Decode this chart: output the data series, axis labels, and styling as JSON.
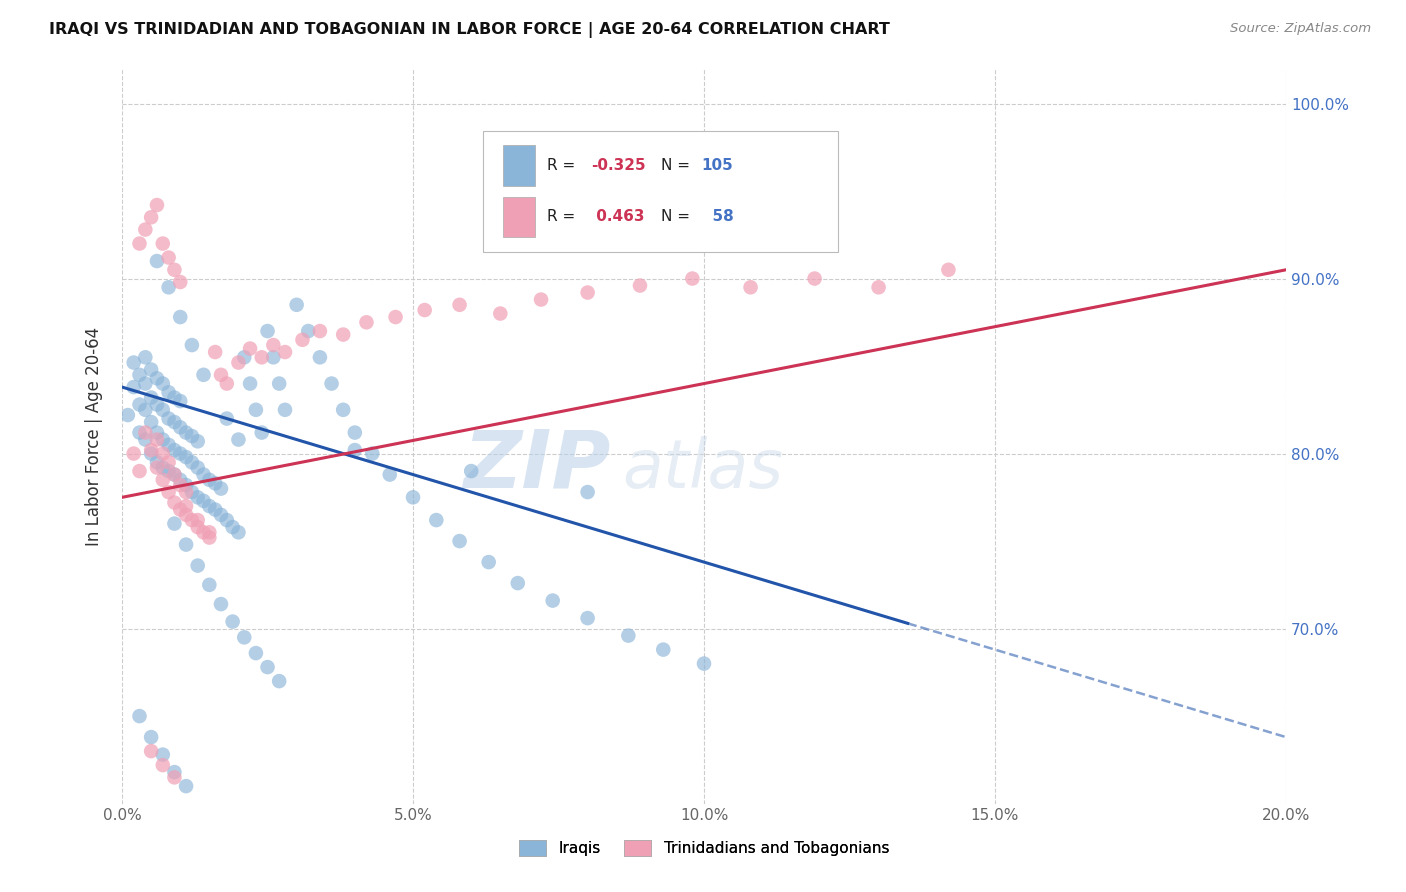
{
  "title": "IRAQI VS TRINIDADIAN AND TOBAGONIAN IN LABOR FORCE | AGE 20-64 CORRELATION CHART",
  "source": "Source: ZipAtlas.com",
  "ylabel": "In Labor Force | Age 20-64",
  "xlim": [
    0.0,
    0.2
  ],
  "ylim": [
    0.6,
    1.02
  ],
  "xticks": [
    0.0,
    0.05,
    0.1,
    0.15,
    0.2
  ],
  "xtick_labels": [
    "0.0%",
    "5.0%",
    "10.0%",
    "15.0%",
    "20.0%"
  ],
  "yticks": [
    0.7,
    0.8,
    0.9,
    1.0
  ],
  "ytick_labels": [
    "70.0%",
    "80.0%",
    "90.0%",
    "100.0%"
  ],
  "background_color": "#ffffff",
  "grid_color": "#cccccc",
  "blue_color": "#8ab4d8",
  "pink_color": "#f0a0b5",
  "blue_line_color": "#2255aa",
  "pink_line_color": "#cc3355",
  "legend_R_blue": "-0.325",
  "legend_N_blue": "105",
  "legend_R_pink": "0.463",
  "legend_N_pink": "58",
  "legend_label_blue": "Iraqis",
  "legend_label_pink": "Trinidadians and Tobagonians",
  "watermark": "ZIPatlas",
  "blue_line_x0": 0.0,
  "blue_line_y0": 0.838,
  "blue_line_x1": 0.2,
  "blue_line_y1": 0.638,
  "blue_line_solid_end": 0.135,
  "pink_line_x0": 0.0,
  "pink_line_y0": 0.775,
  "pink_line_x1": 0.2,
  "pink_line_y1": 0.905,
  "blue_dots_x": [
    0.001,
    0.002,
    0.002,
    0.003,
    0.003,
    0.003,
    0.004,
    0.004,
    0.004,
    0.004,
    0.005,
    0.005,
    0.005,
    0.005,
    0.006,
    0.006,
    0.006,
    0.006,
    0.007,
    0.007,
    0.007,
    0.007,
    0.008,
    0.008,
    0.008,
    0.008,
    0.009,
    0.009,
    0.009,
    0.009,
    0.01,
    0.01,
    0.01,
    0.01,
    0.011,
    0.011,
    0.011,
    0.012,
    0.012,
    0.012,
    0.013,
    0.013,
    0.013,
    0.014,
    0.014,
    0.015,
    0.015,
    0.016,
    0.016,
    0.017,
    0.017,
    0.018,
    0.019,
    0.02,
    0.021,
    0.022,
    0.023,
    0.024,
    0.025,
    0.026,
    0.027,
    0.028,
    0.03,
    0.032,
    0.034,
    0.036,
    0.038,
    0.04,
    0.043,
    0.046,
    0.05,
    0.054,
    0.058,
    0.063,
    0.068,
    0.074,
    0.08,
    0.087,
    0.093,
    0.1,
    0.009,
    0.011,
    0.013,
    0.015,
    0.017,
    0.019,
    0.021,
    0.023,
    0.025,
    0.027,
    0.006,
    0.008,
    0.01,
    0.012,
    0.014,
    0.018,
    0.02,
    0.04,
    0.06,
    0.08,
    0.003,
    0.005,
    0.007,
    0.009,
    0.011
  ],
  "blue_dots_y": [
    0.822,
    0.838,
    0.852,
    0.812,
    0.828,
    0.845,
    0.808,
    0.825,
    0.84,
    0.855,
    0.8,
    0.818,
    0.832,
    0.848,
    0.795,
    0.812,
    0.828,
    0.843,
    0.792,
    0.808,
    0.825,
    0.84,
    0.79,
    0.805,
    0.82,
    0.835,
    0.788,
    0.802,
    0.818,
    0.832,
    0.785,
    0.8,
    0.815,
    0.83,
    0.782,
    0.798,
    0.812,
    0.778,
    0.795,
    0.81,
    0.775,
    0.792,
    0.807,
    0.773,
    0.788,
    0.77,
    0.785,
    0.768,
    0.783,
    0.765,
    0.78,
    0.762,
    0.758,
    0.755,
    0.855,
    0.84,
    0.825,
    0.812,
    0.87,
    0.855,
    0.84,
    0.825,
    0.885,
    0.87,
    0.855,
    0.84,
    0.825,
    0.812,
    0.8,
    0.788,
    0.775,
    0.762,
    0.75,
    0.738,
    0.726,
    0.716,
    0.706,
    0.696,
    0.688,
    0.68,
    0.76,
    0.748,
    0.736,
    0.725,
    0.714,
    0.704,
    0.695,
    0.686,
    0.678,
    0.67,
    0.91,
    0.895,
    0.878,
    0.862,
    0.845,
    0.82,
    0.808,
    0.802,
    0.79,
    0.778,
    0.65,
    0.638,
    0.628,
    0.618,
    0.61
  ],
  "pink_dots_x": [
    0.002,
    0.003,
    0.004,
    0.005,
    0.006,
    0.006,
    0.007,
    0.007,
    0.008,
    0.008,
    0.009,
    0.009,
    0.01,
    0.01,
    0.011,
    0.011,
    0.012,
    0.013,
    0.014,
    0.015,
    0.016,
    0.017,
    0.018,
    0.02,
    0.022,
    0.024,
    0.026,
    0.028,
    0.031,
    0.034,
    0.038,
    0.042,
    0.047,
    0.052,
    0.058,
    0.065,
    0.072,
    0.08,
    0.089,
    0.098,
    0.108,
    0.119,
    0.13,
    0.142,
    0.005,
    0.007,
    0.009,
    0.011,
    0.013,
    0.015,
    0.003,
    0.004,
    0.005,
    0.006,
    0.007,
    0.008,
    0.009,
    0.01
  ],
  "pink_dots_y": [
    0.8,
    0.79,
    0.812,
    0.802,
    0.792,
    0.808,
    0.785,
    0.8,
    0.778,
    0.795,
    0.772,
    0.788,
    0.768,
    0.782,
    0.765,
    0.778,
    0.762,
    0.758,
    0.755,
    0.752,
    0.858,
    0.845,
    0.84,
    0.852,
    0.86,
    0.855,
    0.862,
    0.858,
    0.865,
    0.87,
    0.868,
    0.875,
    0.878,
    0.882,
    0.885,
    0.88,
    0.888,
    0.892,
    0.896,
    0.9,
    0.895,
    0.9,
    0.895,
    0.905,
    0.63,
    0.622,
    0.615,
    0.77,
    0.762,
    0.755,
    0.92,
    0.928,
    0.935,
    0.942,
    0.92,
    0.912,
    0.905,
    0.898
  ]
}
